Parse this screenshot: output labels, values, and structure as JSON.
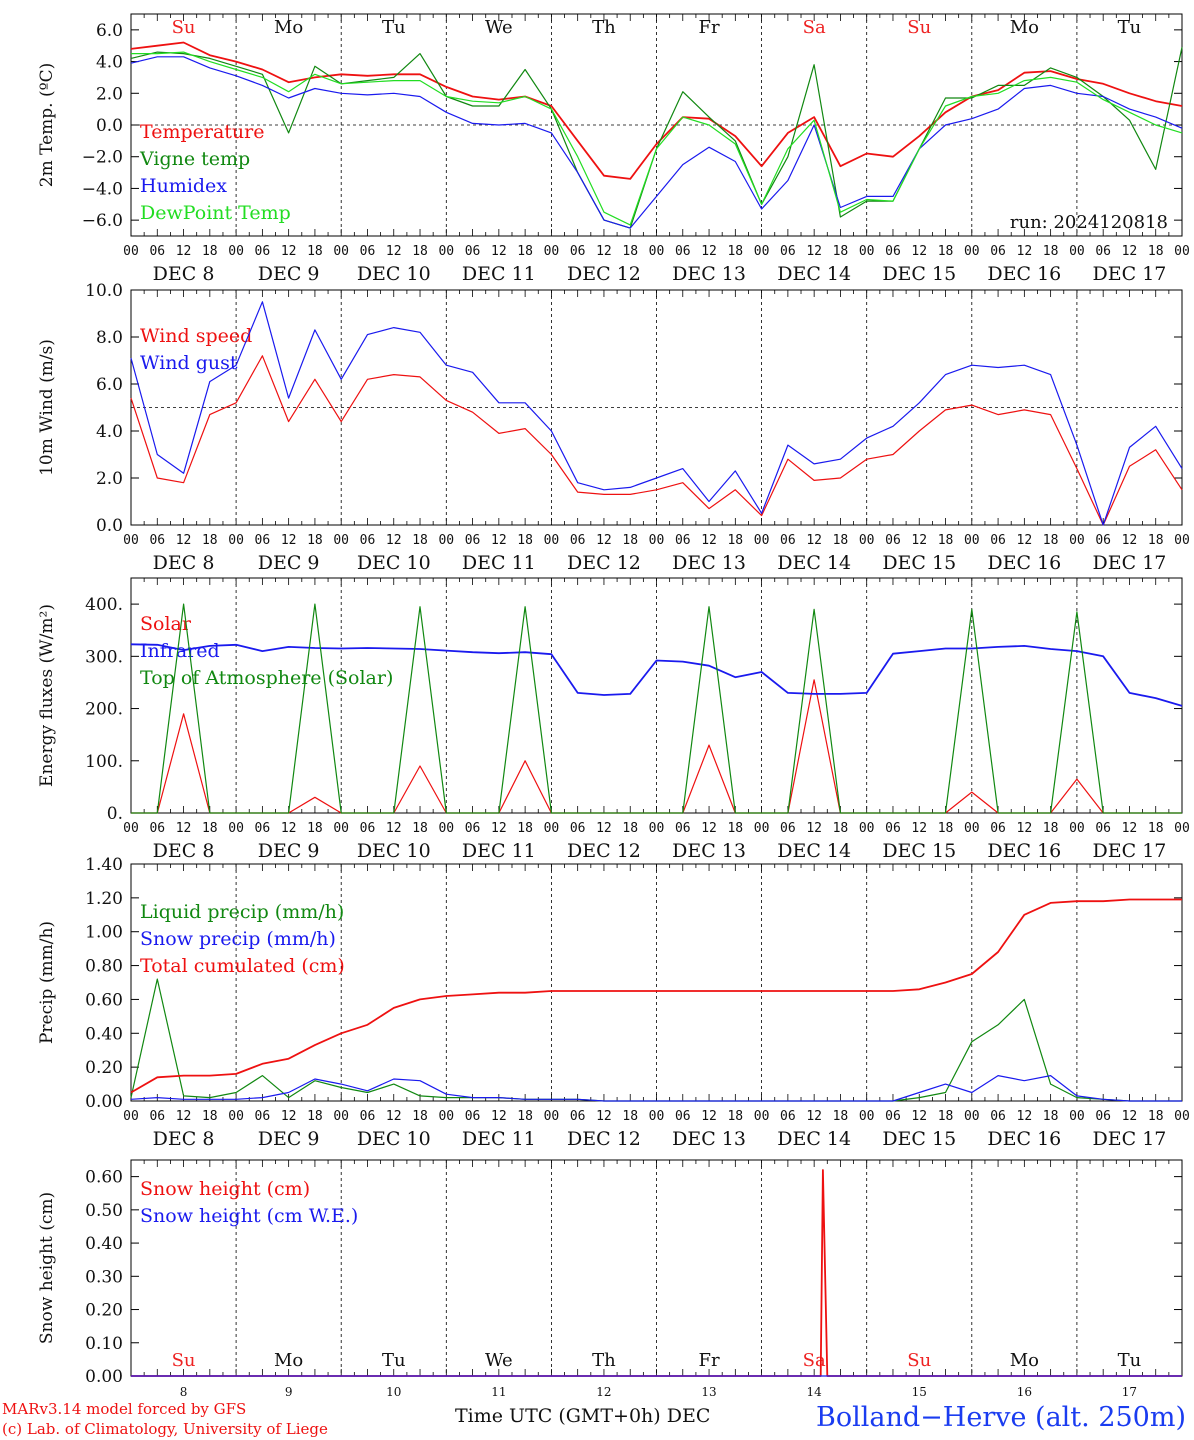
{
  "chart_data": [
    {
      "type": "line",
      "ylabel": "2m Temp. (ºC)",
      "ylim": [
        -7,
        7
      ],
      "yticks": [
        6.0,
        4.0,
        2.0,
        0.0,
        -2.0,
        -4.0,
        -6.0
      ],
      "ytick_labels": [
        "6.0",
        "4.0",
        "2.0",
        "0.0",
        "−2.0",
        "−4.0",
        "−6.0"
      ],
      "reference_line": 0,
      "weekday_labels": [
        {
          "text": "Su",
          "color": "#ee2222"
        },
        {
          "text": "Mo",
          "color": "#111111"
        },
        {
          "text": "Tu",
          "color": "#111111"
        },
        {
          "text": "We",
          "color": "#111111"
        },
        {
          "text": "Th",
          "color": "#111111"
        },
        {
          "text": "Fr",
          "color": "#111111"
        },
        {
          "text": "Sa",
          "color": "#ee2222"
        },
        {
          "text": "Su",
          "color": "#ee2222"
        },
        {
          "text": "Mo",
          "color": "#111111"
        },
        {
          "text": "Tu",
          "color": "#111111"
        }
      ],
      "annotation": "run: 2024120818",
      "x_hours": [
        0,
        6,
        12,
        18,
        24,
        30,
        36,
        42,
        48,
        54,
        60,
        66,
        72,
        78,
        84,
        90,
        96,
        102,
        108,
        114,
        120,
        126,
        132,
        138,
        144,
        150,
        156,
        162,
        168,
        174,
        180,
        186,
        192,
        198,
        204,
        210,
        216,
        222,
        228,
        234,
        240
      ],
      "series": [
        {
          "name": "Temperature",
          "color": "#ee1111",
          "values": [
            4.8,
            5.0,
            5.2,
            4.4,
            4.0,
            3.5,
            2.7,
            3.0,
            3.2,
            3.1,
            3.2,
            3.2,
            2.4,
            1.8,
            1.6,
            1.8,
            1.2,
            -1.0,
            -3.2,
            -3.4,
            -1.2,
            0.5,
            0.4,
            -0.7,
            -2.6,
            -0.5,
            0.5,
            -2.6,
            -1.8,
            -2.0,
            -0.7,
            0.8,
            1.8,
            2.2,
            3.3,
            3.4,
            2.9,
            2.6,
            2.0,
            1.5,
            1.2
          ]
        },
        {
          "name": "Vigne temp",
          "color": "#118811",
          "values": [
            4.2,
            4.6,
            4.5,
            4.2,
            3.7,
            3.2,
            -0.5,
            3.7,
            2.6,
            2.8,
            3.0,
            4.5,
            1.8,
            1.2,
            1.2,
            3.5,
            1.0,
            -3.0,
            -6.0,
            -6.5,
            -1.5,
            2.1,
            0.5,
            -1.0,
            -5.0,
            -2.0,
            3.8,
            -5.8,
            -4.8,
            -4.8,
            -1.5,
            1.7,
            1.7,
            2.5,
            2.5,
            3.6,
            3.0,
            1.8,
            0.3,
            -2.8,
            4.9
          ]
        },
        {
          "name": "Humidex",
          "color": "#1a1aee",
          "values": [
            3.9,
            4.3,
            4.3,
            3.6,
            3.1,
            2.5,
            1.7,
            2.3,
            2.0,
            1.9,
            2.0,
            1.8,
            0.8,
            0.1,
            0.0,
            0.1,
            -0.5,
            -3.0,
            -6.0,
            -6.5,
            -4.5,
            -2.5,
            -1.4,
            -2.3,
            -5.3,
            -3.5,
            0.0,
            -5.2,
            -4.5,
            -4.5,
            -1.5,
            0.0,
            0.4,
            1.0,
            2.3,
            2.5,
            2.0,
            1.8,
            1.0,
            0.5,
            -0.2
          ]
        },
        {
          "name": "DewPoint Temp",
          "color": "#22dd22",
          "values": [
            4.5,
            4.5,
            4.6,
            4.0,
            3.5,
            3.0,
            2.1,
            3.2,
            2.6,
            2.7,
            2.8,
            2.8,
            1.8,
            1.5,
            1.4,
            1.8,
            1.0,
            -2.0,
            -5.5,
            -6.3,
            -1.5,
            0.5,
            0.0,
            -1.2,
            -5.0,
            -1.5,
            0.3,
            -5.5,
            -4.7,
            -4.8,
            -1.5,
            1.2,
            1.8,
            2.0,
            2.8,
            3.0,
            2.7,
            1.6,
            0.8,
            0.0,
            -0.5
          ]
        }
      ]
    },
    {
      "type": "line",
      "ylabel": "10m Wind (m/s)",
      "ylim": [
        0,
        10
      ],
      "yticks": [
        0,
        2,
        4,
        6,
        8,
        10
      ],
      "ytick_labels": [
        "0.0",
        "2.0",
        "4.0",
        "6.0",
        "8.0",
        "10.0"
      ],
      "reference_line": 5,
      "x_hours": [
        0,
        6,
        12,
        18,
        24,
        30,
        36,
        42,
        48,
        54,
        60,
        66,
        72,
        78,
        84,
        90,
        96,
        102,
        108,
        114,
        120,
        126,
        132,
        138,
        144,
        150,
        156,
        162,
        168,
        174,
        180,
        186,
        192,
        198,
        204,
        210,
        216,
        222,
        228,
        234,
        240
      ],
      "series": [
        {
          "name": "Wind speed",
          "color": "#ee1111",
          "values": [
            5.4,
            2.0,
            1.8,
            4.7,
            5.2,
            7.2,
            4.4,
            6.2,
            4.4,
            6.2,
            6.4,
            6.3,
            5.3,
            4.8,
            3.9,
            4.1,
            3.0,
            1.4,
            1.3,
            1.3,
            1.5,
            1.8,
            0.7,
            1.5,
            0.4,
            2.8,
            1.9,
            2.0,
            2.8,
            3.0,
            4.0,
            4.9,
            5.1,
            4.7,
            4.9,
            4.7,
            2.4,
            0.0,
            2.5,
            3.2,
            1.5
          ]
        },
        {
          "name": "Wind gust",
          "color": "#1a1aee",
          "values": [
            7.1,
            3.0,
            2.2,
            6.1,
            6.8,
            9.5,
            5.4,
            8.3,
            6.2,
            8.1,
            8.4,
            8.2,
            6.8,
            6.5,
            5.2,
            5.2,
            4.0,
            1.8,
            1.5,
            1.6,
            2.0,
            2.4,
            1.0,
            2.3,
            0.5,
            3.4,
            2.6,
            2.8,
            3.7,
            4.2,
            5.2,
            6.4,
            6.8,
            6.7,
            6.8,
            6.4,
            3.4,
            0.0,
            3.3,
            4.2,
            2.4
          ]
        }
      ]
    },
    {
      "type": "line",
      "ylabel": "Energy fluxes (W/m²)",
      "ylim": [
        0,
        450
      ],
      "yticks": [
        0,
        100,
        200,
        300,
        400
      ],
      "ytick_labels": [
        "0.",
        "100.",
        "200.",
        "300.",
        "400."
      ],
      "x_hours": [
        0,
        6,
        12,
        18,
        24,
        30,
        36,
        42,
        48,
        54,
        60,
        66,
        72,
        78,
        84,
        90,
        96,
        102,
        108,
        114,
        120,
        126,
        132,
        138,
        144,
        150,
        156,
        162,
        168,
        174,
        180,
        186,
        192,
        198,
        204,
        210,
        216,
        222,
        228,
        234,
        240
      ],
      "series": [
        {
          "name": "Solar",
          "color": "#ee1111",
          "values": [
            0,
            0,
            190,
            0,
            0,
            0,
            0,
            30,
            0,
            0,
            0,
            90,
            0,
            0,
            0,
            100,
            0,
            0,
            0,
            0,
            0,
            0,
            130,
            0,
            0,
            0,
            255,
            0,
            0,
            0,
            0,
            0,
            40,
            0,
            0,
            0,
            65,
            0,
            0,
            0,
            0
          ]
        },
        {
          "name": "Infrared",
          "color": "#1a1aee",
          "values": [
            323,
            322,
            312,
            320,
            322,
            310,
            318,
            316,
            315,
            316,
            315,
            314,
            311,
            308,
            306,
            308,
            304,
            230,
            226,
            228,
            292,
            290,
            282,
            260,
            270,
            230,
            228,
            228,
            230,
            305,
            310,
            315,
            315,
            318,
            320,
            314,
            310,
            300,
            230,
            220,
            205
          ]
        },
        {
          "name": "Top of Atmosphere (Solar)",
          "color": "#118811",
          "values": [
            0,
            0,
            400,
            0,
            0,
            0,
            0,
            400,
            0,
            0,
            0,
            395,
            0,
            0,
            0,
            395,
            0,
            0,
            0,
            0,
            0,
            0,
            395,
            0,
            0,
            0,
            390,
            0,
            0,
            0,
            0,
            0,
            390,
            0,
            0,
            0,
            385,
            0,
            0,
            0,
            0
          ]
        }
      ]
    },
    {
      "type": "line",
      "ylabel": "Precip (mm/h)",
      "ylim": [
        0,
        1.4
      ],
      "yticks": [
        0,
        0.2,
        0.4,
        0.6,
        0.8,
        1.0,
        1.2,
        1.4
      ],
      "ytick_labels": [
        "0.00",
        "0.20",
        "0.40",
        "0.60",
        "0.80",
        "1.00",
        "1.20",
        "1.40"
      ],
      "x_hours": [
        0,
        6,
        12,
        18,
        24,
        30,
        36,
        42,
        48,
        54,
        60,
        66,
        72,
        78,
        84,
        90,
        96,
        102,
        108,
        114,
        120,
        126,
        132,
        138,
        144,
        150,
        156,
        162,
        168,
        174,
        180,
        186,
        192,
        198,
        204,
        210,
        216,
        222,
        228,
        234,
        240
      ],
      "series": [
        {
          "name": "Liquid precip (mm/h)",
          "color": "#118811",
          "values": [
            0.02,
            0.72,
            0.03,
            0.02,
            0.05,
            0.15,
            0.02,
            0.12,
            0.08,
            0.05,
            0.1,
            0.03,
            0.02,
            0.02,
            0.02,
            0.01,
            0.01,
            0.01,
            0.0,
            0.0,
            0.0,
            0.0,
            0.0,
            0.0,
            0.0,
            0.0,
            0.0,
            0.0,
            0.0,
            0.0,
            0.02,
            0.05,
            0.35,
            0.45,
            0.6,
            0.1,
            0.02,
            0.01,
            0.0,
            0.0,
            0.0
          ]
        },
        {
          "name": "Snow precip (mm/h)",
          "color": "#1a1aee",
          "values": [
            0.01,
            0.02,
            0.01,
            0.01,
            0.01,
            0.02,
            0.05,
            0.13,
            0.1,
            0.06,
            0.13,
            0.12,
            0.04,
            0.02,
            0.02,
            0.01,
            0.01,
            0.01,
            0.0,
            0.0,
            0.0,
            0.0,
            0.0,
            0.0,
            0.0,
            0.0,
            0.0,
            0.0,
            0.0,
            0.0,
            0.05,
            0.1,
            0.05,
            0.15,
            0.12,
            0.15,
            0.03,
            0.01,
            0.0,
            0.0,
            0.0
          ]
        },
        {
          "name": "Total cumulated (cm)",
          "color": "#ee1111",
          "values": [
            0.05,
            0.14,
            0.15,
            0.15,
            0.16,
            0.22,
            0.25,
            0.33,
            0.4,
            0.45,
            0.55,
            0.6,
            0.62,
            0.63,
            0.64,
            0.64,
            0.65,
            0.65,
            0.65,
            0.65,
            0.65,
            0.65,
            0.65,
            0.65,
            0.65,
            0.65,
            0.65,
            0.65,
            0.65,
            0.65,
            0.66,
            0.7,
            0.75,
            0.88,
            1.1,
            1.17,
            1.18,
            1.18,
            1.19,
            1.19,
            1.19
          ]
        }
      ]
    },
    {
      "type": "line",
      "ylabel": "Snow height (cm)",
      "ylim": [
        0,
        0.65
      ],
      "yticks": [
        0,
        0.1,
        0.2,
        0.3,
        0.4,
        0.5,
        0.6
      ],
      "ytick_labels": [
        "0.00",
        "0.10",
        "0.20",
        "0.30",
        "0.40",
        "0.50",
        "0.60"
      ],
      "weekday_labels": [
        {
          "text": "Su",
          "color": "#ee2222"
        },
        {
          "text": "Mo",
          "color": "#111111"
        },
        {
          "text": "Tu",
          "color": "#111111"
        },
        {
          "text": "We",
          "color": "#111111"
        },
        {
          "text": "Th",
          "color": "#111111"
        },
        {
          "text": "Fr",
          "color": "#111111"
        },
        {
          "text": "Sa",
          "color": "#ee2222"
        },
        {
          "text": "Su",
          "color": "#ee2222"
        },
        {
          "text": "Mo",
          "color": "#111111"
        },
        {
          "text": "Tu",
          "color": "#111111"
        }
      ],
      "day_numbers": [
        "8",
        "9",
        "10",
        "11",
        "12",
        "13",
        "14",
        "15",
        "16",
        "17"
      ],
      "series": [
        {
          "name": "Snow height (cm)",
          "color": "#ee1111",
          "points": [
            [
              0,
              0
            ],
            [
              157.5,
              0
            ],
            [
              158,
              0.62
            ],
            [
              159,
              0
            ],
            [
              240,
              0
            ]
          ]
        },
        {
          "name": "Snow height (cm W.E.)",
          "color": "#1a1aee",
          "points": [
            [
              0,
              0
            ],
            [
              240,
              0
            ]
          ]
        }
      ]
    }
  ],
  "x_axis": {
    "hour_labels": [
      "00",
      "06",
      "12",
      "18"
    ],
    "end_label": "00",
    "day_labels": [
      "DEC  8",
      "DEC  9",
      "DEC 10",
      "DEC 11",
      "DEC 12",
      "DEC 13",
      "DEC 14",
      "DEC 15",
      "DEC 16",
      "DEC 17"
    ],
    "title": "Time UTC (GMT+0h) DEC"
  },
  "footer": {
    "credit_line1": "MARv3.14 model forced by GFS",
    "credit_line2": "(c) Lab. of Climatology, University of Liege",
    "station": "Bolland−Herve (alt. 250m)"
  }
}
